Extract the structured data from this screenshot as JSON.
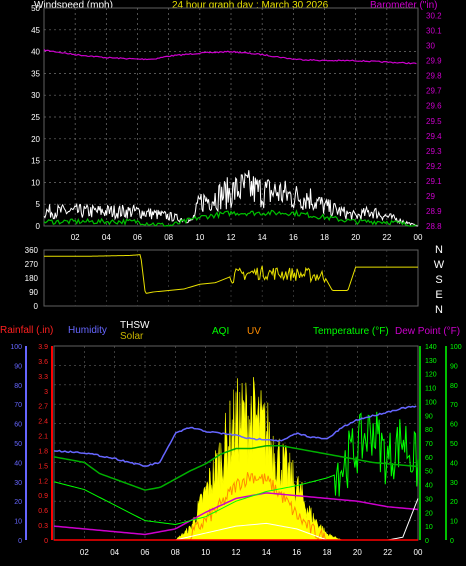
{
  "header": {
    "wind_label": "Windspeed (mph)",
    "date_title": "24 hour graph day : March 30 2026",
    "baro_label": "Barometer (\"in)"
  },
  "wind_panel": {
    "y_ticks": [
      "0",
      "5",
      "10",
      "15",
      "20",
      "25",
      "30",
      "35",
      "40",
      "45",
      "50"
    ],
    "baro_ticks": [
      "28.8",
      "28.9",
      "29",
      "29.1",
      "29.2",
      "29.3",
      "29.4",
      "29.5",
      "29.6",
      "29.7",
      "29.8",
      "29.9",
      "30",
      "30.1",
      "30.2"
    ],
    "x_ticks": [
      "02",
      "04",
      "06",
      "08",
      "10",
      "12",
      "14",
      "16",
      "18",
      "20",
      "22",
      "00"
    ]
  },
  "dir_panel": {
    "y_ticks": [
      "360",
      "270",
      "180",
      "90",
      "0"
    ],
    "compass": [
      "N",
      "W",
      "S",
      "E",
      "N"
    ]
  },
  "bottom_panel": {
    "rain_label": "Rainfall (.in)",
    "humidity_label": "Humidity",
    "thsw_label": "THSW",
    "solar_label": "Solar",
    "aqi_label": "AQI",
    "uv_label": "UV",
    "temp_label": "Temperature (°F)",
    "dew_label": "Dew Point (°F)",
    "rain_ticks": [
      "0",
      "0.3",
      "0.6",
      "0.9",
      "1.2",
      "1.5",
      "1.8",
      "2.1",
      "2.4",
      "2.7",
      "3",
      "3.3",
      "3.6",
      "3.9"
    ],
    "hum_ticks": [
      "0",
      "10",
      "20",
      "30",
      "40",
      "50",
      "60",
      "70",
      "80",
      "90",
      "100"
    ],
    "temp_ticks": [
      "0",
      "10",
      "20",
      "30",
      "40",
      "50",
      "60",
      "70",
      "80",
      "90",
      "100",
      "110",
      "120",
      "130",
      "140"
    ],
    "aqi_ticks": [
      "0",
      "10",
      "20",
      "30",
      "40",
      "50",
      "60",
      "70",
      "80",
      "90",
      "100"
    ],
    "x_ticks": [
      "02",
      "04",
      "06",
      "08",
      "10",
      "12",
      "14",
      "16",
      "18",
      "20",
      "22",
      "00"
    ]
  },
  "colors": {
    "wind_gust": "#ffffff",
    "wind_avg": "#00c000",
    "barometer": "#cc00cc",
    "direction": "#e8e000",
    "humidity": "#6666ff",
    "temperature": "#00b000",
    "dew_point": "#cc00cc",
    "aqi": "#00ff00",
    "uv": "#ff8c00",
    "solar": "#ffff00",
    "rain": "#ff0000",
    "thsw": "#ffffff"
  },
  "chart_data": [
    {
      "type": "line",
      "title": "24 hour graph day : March 30 2026",
      "x_ticks": [
        "02",
        "04",
        "06",
        "08",
        "10",
        "12",
        "14",
        "16",
        "18",
        "20",
        "22",
        "00"
      ],
      "xlim": [
        0,
        24
      ],
      "ylim": [
        0,
        50
      ],
      "ylabel": "Windspeed (mph)",
      "y2label": "Barometer (\"in)",
      "y2lim": [
        28.8,
        30.25
      ],
      "grid": true,
      "series": [
        {
          "name": "",
          "axis": "barometer",
          "x": [
            0,
            2,
            4,
            6,
            7,
            8,
            10,
            12,
            14,
            16,
            18,
            20,
            22,
            24
          ],
          "values": [
            29.97,
            29.94,
            29.92,
            29.91,
            29.91,
            29.93,
            29.95,
            29.96,
            29.94,
            29.91,
            29.9,
            29.9,
            29.89,
            29.88
          ]
        },
        {
          "name": "",
          "axis": "wind_gust",
          "x": [
            0,
            2,
            4,
            6,
            8,
            9.5,
            10,
            11,
            12,
            13,
            14,
            15,
            16,
            17,
            18,
            19,
            20,
            21,
            22,
            23,
            24
          ],
          "values": [
            3,
            3,
            3,
            3,
            2,
            1,
            5,
            6,
            7,
            8,
            7,
            7,
            6,
            6,
            4,
            3,
            2,
            3,
            2,
            1,
            0
          ]
        },
        {
          "name": "",
          "axis": "wind_avg",
          "x": [
            0,
            2,
            4,
            6,
            8,
            10,
            12,
            14,
            16,
            18,
            20,
            22,
            24
          ],
          "values": [
            1,
            1,
            1,
            1,
            0,
            2,
            3,
            3,
            3,
            2,
            1,
            1,
            0
          ]
        }
      ]
    },
    {
      "type": "line",
      "ylabel": "",
      "ylim": [
        0,
        360
      ],
      "y_ticks": [
        "360",
        "270",
        "180",
        "90",
        "0"
      ],
      "x": [
        0,
        3,
        5.5,
        6.2,
        6.5,
        7,
        8,
        9,
        10,
        11,
        12,
        13,
        14,
        15,
        16,
        17,
        18,
        18.5,
        19,
        19.5,
        20,
        22,
        24
      ],
      "values": [
        320,
        320,
        325,
        330,
        80,
        90,
        100,
        110,
        140,
        150,
        190,
        210,
        215,
        210,
        205,
        200,
        190,
        100,
        100,
        100,
        250,
        250,
        250
      ]
    },
    {
      "type": "line",
      "x_ticks": [
        "02",
        "04",
        "06",
        "08",
        "10",
        "12",
        "14",
        "16",
        "18",
        "20",
        "22",
        "00"
      ],
      "xlim": [
        0,
        24
      ],
      "series": [
        {
          "name": "Humidity",
          "axis": "humidity",
          "ylim": [
            0,
            100
          ],
          "x": [
            0,
            2,
            4,
            5,
            6,
            7,
            8,
            9,
            10,
            11,
            12,
            13,
            14,
            15,
            16,
            17,
            18,
            19,
            20,
            21,
            22,
            23,
            24
          ],
          "values": [
            46,
            45,
            42,
            40,
            38,
            40,
            55,
            58,
            56,
            55,
            54,
            52,
            52,
            51,
            55,
            53,
            52,
            58,
            62,
            64,
            66,
            68,
            69
          ]
        },
        {
          "name": "Temperature (°F)",
          "axis": "temperature",
          "ylim": [
            0,
            140
          ],
          "x": [
            0,
            1,
            2,
            3,
            4,
            5,
            6,
            7,
            8,
            9,
            10,
            11,
            12,
            13,
            14,
            15,
            16,
            17,
            18,
            19,
            20,
            21,
            22,
            23,
            24
          ],
          "values": [
            60,
            58,
            56,
            48,
            44,
            40,
            36,
            38,
            44,
            50,
            55,
            62,
            66,
            66,
            68,
            68,
            66,
            64,
            62,
            60,
            58,
            56,
            55,
            54,
            53
          ]
        },
        {
          "name": "Dew Point (°F)",
          "axis": "temperature",
          "ylim": [
            0,
            140
          ],
          "x": [
            0,
            2,
            4,
            6,
            8,
            10,
            12,
            14,
            16,
            18,
            20,
            22,
            24
          ],
          "values": [
            10,
            8,
            6,
            4,
            8,
            20,
            30,
            34,
            32,
            30,
            28,
            24,
            22
          ]
        },
        {
          "name": "AQI",
          "axis": "aqi",
          "ylim": [
            0,
            100
          ],
          "x": [
            0,
            2,
            4,
            6,
            8,
            10,
            12,
            14,
            16,
            18,
            19,
            20,
            21,
            22,
            23,
            24
          ],
          "values": [
            30,
            26,
            18,
            10,
            8,
            12,
            20,
            25,
            28,
            32,
            35,
            45,
            55,
            38,
            50,
            35
          ]
        },
        {
          "name": "Solar",
          "axis": "solar",
          "ylim": [
            0,
            3.9
          ],
          "x": [
            8,
            9,
            10,
            11,
            12,
            13,
            14,
            15,
            16,
            17,
            18,
            19
          ],
          "values": [
            0,
            0.2,
            0.8,
            1.4,
            2.0,
            2.1,
            1.8,
            1.3,
            0.9,
            0.4,
            0.1,
            0
          ]
        },
        {
          "name": "UV",
          "axis": "uv",
          "ylim": [
            0,
            3.9
          ],
          "x": [
            9,
            10,
            11,
            12,
            13,
            14,
            15,
            16,
            17,
            18
          ],
          "values": [
            0.1,
            0.4,
            0.7,
            1.1,
            1.3,
            1.2,
            0.9,
            0.5,
            0.2,
            0
          ]
        },
        {
          "name": "THSW",
          "axis": "temperature",
          "ylim": [
            0,
            140
          ],
          "x": [
            0,
            2,
            4,
            6,
            8,
            10,
            12,
            14,
            16,
            18,
            20,
            22,
            23,
            24
          ],
          "values": [
            0,
            0,
            0,
            0,
            0,
            5,
            10,
            12,
            8,
            0,
            0,
            0,
            2,
            30
          ]
        },
        {
          "name": "Rainfall (.in)",
          "axis": "rain",
          "ylim": [
            0,
            3.9
          ],
          "x": [
            0,
            24
          ],
          "values": [
            0,
            0
          ]
        }
      ]
    }
  ]
}
